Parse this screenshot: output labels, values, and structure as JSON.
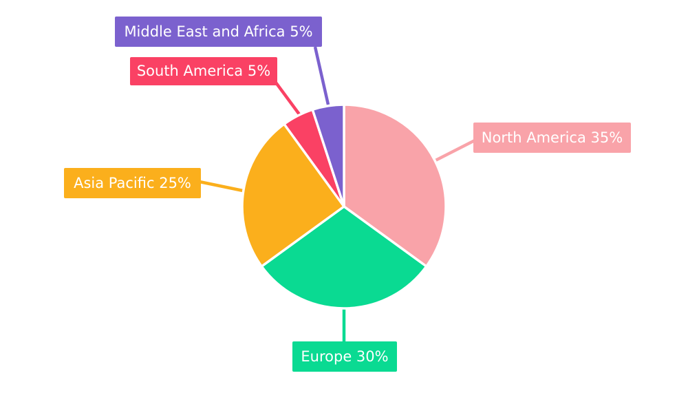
{
  "chart_data": {
    "type": "pie",
    "unit": "%",
    "start_angle_deg": 0,
    "direction": "clockwise",
    "background_color": "#FFFFFF",
    "label_text_color": "#FFFFFF",
    "slice_gap_color": "#FFFFFF",
    "legend_position": "none",
    "title": "",
    "series": [
      {
        "label": "North America",
        "value": 35,
        "color": "#F9A3A9",
        "callout": "North America 35%"
      },
      {
        "label": "Europe",
        "value": 30,
        "color": "#0ADA92",
        "callout": "Europe 30%"
      },
      {
        "label": "Asia Pacific",
        "value": 25,
        "color": "#FBAF1C",
        "callout": "Asia Pacific 25%"
      },
      {
        "label": "South America",
        "value": 5,
        "color": "#FA4164",
        "callout": "South America 5%"
      },
      {
        "label": "Middle East and Africa",
        "value": 5,
        "color": "#7B61CE",
        "callout": "Middle East and Africa 5%"
      }
    ]
  }
}
